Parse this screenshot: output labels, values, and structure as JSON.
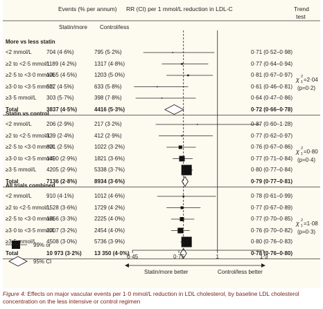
{
  "header": {
    "events": "Events (% per annum)",
    "rr": "RR (CI) per 1 mmol/L reduction in LDL-C",
    "trend": "Trend",
    "test": "test",
    "statin_more": "Statin/more",
    "control_less": "Control/less"
  },
  "chart_data": {
    "type": "forest",
    "x_axis": {
      "ticks": [
        "0·45",
        "0·75",
        "1",
        "1·3"
      ],
      "tick_values": [
        0.45,
        0.75,
        1.0,
        1.3
      ],
      "scale": "linear",
      "xlim": [
        0.4,
        1.36
      ]
    },
    "reference_line": 1.0,
    "groups": [
      {
        "title": "More vs less statin",
        "rows": [
          {
            "label": "<2 mmol/L",
            "statin": "704 (4·6%)",
            "control": "795 (5·2%)",
            "rr_text": "0·71 (0·52–0·98)",
            "rr": 0.71,
            "lo": 0.52,
            "hi": 0.98,
            "size": 1.5
          },
          {
            "label": "≥2 to <2·5 mmol/L",
            "statin": "1189 (4·2%)",
            "control": "1317 (4·8%)",
            "rr_text": "0·77 (0·64–0·94)",
            "rr": 0.77,
            "lo": 0.64,
            "hi": 0.94,
            "size": 2.5
          },
          {
            "label": "≥2·5 to <3·0 mmol/L",
            "statin": "1065 (4·5%)",
            "control": "1203 (5·0%)",
            "rr_text": "0·81 (0·67–0·97)",
            "rr": 0.81,
            "lo": 0.67,
            "hi": 0.97,
            "size": 2.5
          },
          {
            "label": "≥3·0 to <3·5 mmol/L",
            "statin": "517 (4·5%)",
            "control": "633 (5·8%)",
            "rr_text": "0·61 (0·46–0·81)",
            "rr": 0.61,
            "lo": 0.46,
            "hi": 0.81,
            "size": 1.5
          },
          {
            "label": "≥3·5 mmol/L",
            "statin": "303 (5·7%)",
            "control": "398 (7·8%)",
            "rr_text": "0·64 (0·47–0·86)",
            "rr": 0.64,
            "lo": 0.47,
            "hi": 0.86,
            "size": 1.5
          }
        ],
        "total": {
          "label": "Total",
          "statin": "3837 (4·5%)",
          "control": "4416 (5·3%)",
          "rr_text": "0·72 (0·66–0·78)",
          "rr": 0.72,
          "lo": 0.66,
          "hi": 0.78
        },
        "trend": {
          "chi": "χ",
          "sup": "2",
          "sub": "1",
          "val": "=2·04",
          "p": "(p=0·2)"
        }
      },
      {
        "title": "Statin vs control",
        "rows": [
          {
            "label": "<2 mmol/L",
            "statin": "206 (2·9%)",
            "control": "217 (3·2%)",
            "rr_text": "0·87 (0·60–1·28)",
            "rr": 0.87,
            "lo": 0.6,
            "hi": 1.28,
            "size": 1.5
          },
          {
            "label": "≥2 to <2·5 mmol/L",
            "statin": "339 (2·4%)",
            "control": "412 (2·9%)",
            "rr_text": "0·77 (0·62–0·97)",
            "rr": 0.77,
            "lo": 0.62,
            "hi": 0.97,
            "size": 2
          },
          {
            "label": "≥2·5 to <3·0 mmol/L",
            "statin": "801 (2·5%)",
            "control": "1022 (3·2%)",
            "rr_text": "0·76 (0·67–0·86)",
            "rr": 0.76,
            "lo": 0.67,
            "hi": 0.86,
            "size": 5
          },
          {
            "label": "≥3·0 to <3·5 mmol/L",
            "statin": "1490 (2·9%)",
            "control": "1821 (3·6%)",
            "rr_text": "0·77 (0·71–0·84)",
            "rr": 0.77,
            "lo": 0.71,
            "hi": 0.84,
            "size": 8
          },
          {
            "label": "≥3·5 mmol/L",
            "statin": "4205 (2·9%)",
            "control": "5338 (3·7%)",
            "rr_text": "0·80 (0·77–0·84)",
            "rr": 0.8,
            "lo": 0.77,
            "hi": 0.84,
            "size": 15
          }
        ],
        "total": {
          "label": "Total",
          "statin": "7136 (2·8%)",
          "control": "8934 (3·6%)",
          "rr_text": "0·79 (0·77–0·81)",
          "rr": 0.79,
          "lo": 0.77,
          "hi": 0.81
        },
        "trend": {
          "chi": "χ",
          "sup": "2",
          "sub": "1",
          "val": "=0·80",
          "p": "(p=0·4)"
        }
      },
      {
        "title": "All trials combined",
        "rows": [
          {
            "label": "<2 mmol/L",
            "statin": "910 (4·1%)",
            "control": "1012 (4·6%)",
            "rr_text": "0·78 (0·61–0·99)",
            "rr": 0.78,
            "lo": 0.61,
            "hi": 0.99,
            "size": 2.5
          },
          {
            "label": "≥2 to <2·5 mmol/L",
            "statin": "1528 (3·6%)",
            "control": "1729 (4·2%)",
            "rr_text": "0·77 (0·67–0·89)",
            "rr": 0.77,
            "lo": 0.67,
            "hi": 0.89,
            "size": 4
          },
          {
            "label": "≥2·5 to <3·0 mmol/L",
            "statin": "1866 (3·3%)",
            "control": "2225 (4·0%)",
            "rr_text": "0·77 (0·70–0·85)",
            "rr": 0.77,
            "lo": 0.7,
            "hi": 0.85,
            "size": 6
          },
          {
            "label": "≥3·0 to <3·5 mmol/L",
            "statin": "2007 (3·2%)",
            "control": "2454 (4·0%)",
            "rr_text": "0·76 (0·70–0·82)",
            "rr": 0.76,
            "lo": 0.7,
            "hi": 0.82,
            "size": 8
          },
          {
            "label": "≥3·5 mmol/L",
            "statin": "4508 (3·0%)",
            "control": "5736 (3·9%)",
            "rr_text": "0·80 (0·76–0·83)",
            "rr": 0.8,
            "lo": 0.76,
            "hi": 0.83,
            "size": 15
          }
        ],
        "total": {
          "label": "Total",
          "statin": "10 973 (3·2%)",
          "control": "13 350 (4·0%)",
          "rr_text": "0·78 (0·76–0·80)",
          "rr": 0.78,
          "lo": 0.76,
          "hi": 0.8
        },
        "trend": {
          "chi": "χ",
          "sup": "2",
          "sub": "1",
          "val": "=1·08",
          "p": "(p=0·3)"
        }
      }
    ]
  },
  "legend": {
    "square": "99% or",
    "diamond": "95% CI"
  },
  "arrows": {
    "left": "Statin/more better",
    "right": "Control/less better"
  },
  "caption": {
    "label": "Figure 4:",
    "text": " Effects on major vascular events per 1·0 mmol/L reduction in LDL cholesterol, by baseline LDL cholesterol concentration on the less intensive or control regimen"
  },
  "colors": {
    "panel": "#fdfaf0",
    "caption": "#7a1f0f",
    "ink": "#222222"
  }
}
